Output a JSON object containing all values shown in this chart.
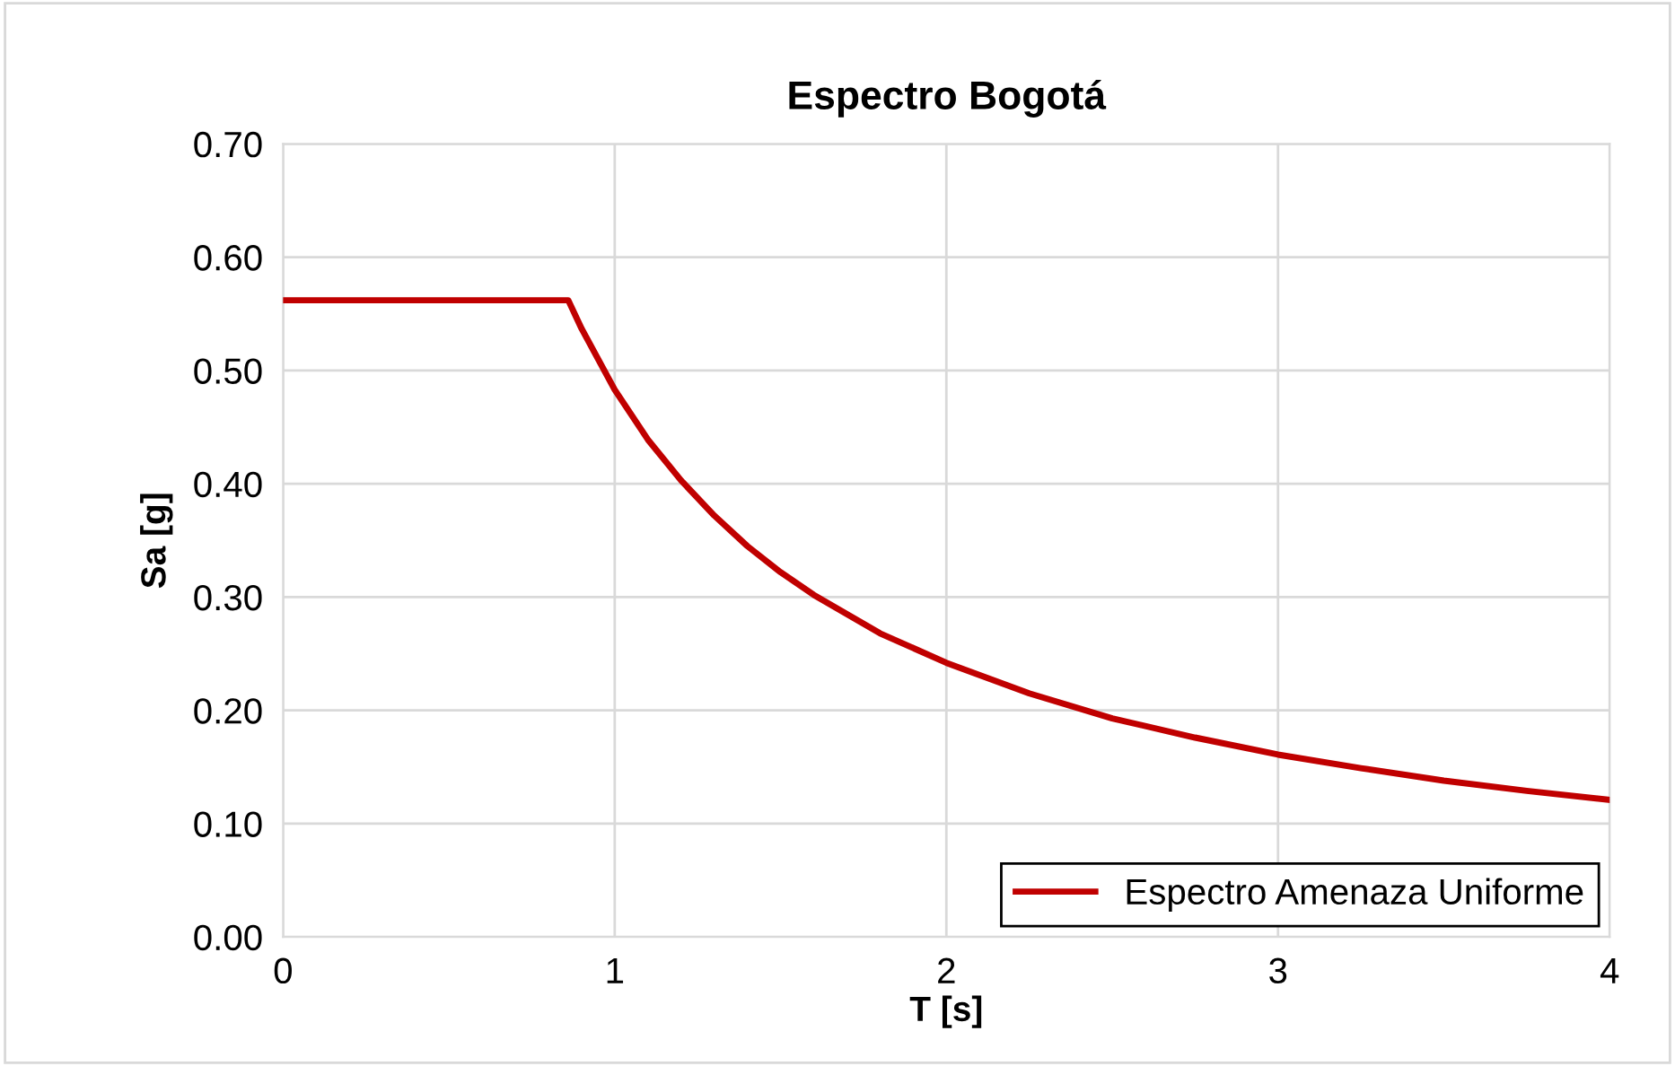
{
  "chart_data": {
    "type": "line",
    "title": "Espectro Bogotá",
    "xlabel": "T [s]",
    "ylabel": "Sa [g]",
    "series": [
      {
        "name": "Espectro Amenaza Uniforme",
        "color": "#c00000",
        "x": [
          0,
          0.86,
          0.9,
          1.0,
          1.1,
          1.2,
          1.3,
          1.4,
          1.5,
          1.6,
          1.8,
          2.0,
          2.25,
          2.5,
          2.75,
          3.0,
          3.25,
          3.5,
          3.75,
          4.0
        ],
        "values": [
          0.562,
          0.562,
          0.537,
          0.483,
          0.439,
          0.403,
          0.372,
          0.345,
          0.322,
          0.302,
          0.268,
          0.242,
          0.215,
          0.193,
          0.176,
          0.161,
          0.149,
          0.138,
          0.129,
          0.121
        ]
      }
    ],
    "xlim": [
      0,
      4
    ],
    "xticks": [
      0,
      1,
      2,
      3,
      4
    ],
    "ylim": [
      0,
      0.7
    ],
    "yticks": [
      {
        "value": 0,
        "label": "0.00"
      },
      {
        "value": 0.1,
        "label": "0.10"
      },
      {
        "value": 0.2,
        "label": "0.20"
      },
      {
        "value": 0.3,
        "label": "0.30"
      },
      {
        "value": 0.4,
        "label": "0.40"
      },
      {
        "value": 0.5,
        "label": "0.50"
      },
      {
        "value": 0.6,
        "label": "0.60"
      },
      {
        "value": 0.7,
        "label": "0.70"
      }
    ],
    "grid": true,
    "legend": "bottom right",
    "marker": "none",
    "line_style": "solid"
  }
}
